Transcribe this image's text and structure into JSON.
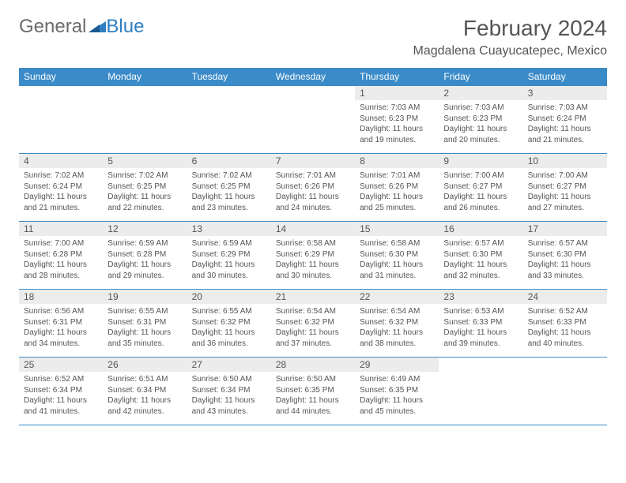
{
  "logo": {
    "part1": "General",
    "part2": "Blue"
  },
  "header": {
    "title": "February 2024",
    "location": "Magdalena Cuayucatepec, Mexico"
  },
  "colors": {
    "header_bg": "#3b8bc9",
    "header_text": "#ffffff",
    "daynum_bg": "#ececec",
    "text": "#555555",
    "border": "#3b8bc9",
    "logo_gray": "#6b6b6b",
    "logo_blue": "#2d7fc1"
  },
  "weekdays": [
    "Sunday",
    "Monday",
    "Tuesday",
    "Wednesday",
    "Thursday",
    "Friday",
    "Saturday"
  ],
  "weeks": [
    [
      null,
      null,
      null,
      null,
      {
        "day": "1",
        "sunrise": "Sunrise: 7:03 AM",
        "sunset": "Sunset: 6:23 PM",
        "daylight": "Daylight: 11 hours and 19 minutes."
      },
      {
        "day": "2",
        "sunrise": "Sunrise: 7:03 AM",
        "sunset": "Sunset: 6:23 PM",
        "daylight": "Daylight: 11 hours and 20 minutes."
      },
      {
        "day": "3",
        "sunrise": "Sunrise: 7:03 AM",
        "sunset": "Sunset: 6:24 PM",
        "daylight": "Daylight: 11 hours and 21 minutes."
      }
    ],
    [
      {
        "day": "4",
        "sunrise": "Sunrise: 7:02 AM",
        "sunset": "Sunset: 6:24 PM",
        "daylight": "Daylight: 11 hours and 21 minutes."
      },
      {
        "day": "5",
        "sunrise": "Sunrise: 7:02 AM",
        "sunset": "Sunset: 6:25 PM",
        "daylight": "Daylight: 11 hours and 22 minutes."
      },
      {
        "day": "6",
        "sunrise": "Sunrise: 7:02 AM",
        "sunset": "Sunset: 6:25 PM",
        "daylight": "Daylight: 11 hours and 23 minutes."
      },
      {
        "day": "7",
        "sunrise": "Sunrise: 7:01 AM",
        "sunset": "Sunset: 6:26 PM",
        "daylight": "Daylight: 11 hours and 24 minutes."
      },
      {
        "day": "8",
        "sunrise": "Sunrise: 7:01 AM",
        "sunset": "Sunset: 6:26 PM",
        "daylight": "Daylight: 11 hours and 25 minutes."
      },
      {
        "day": "9",
        "sunrise": "Sunrise: 7:00 AM",
        "sunset": "Sunset: 6:27 PM",
        "daylight": "Daylight: 11 hours and 26 minutes."
      },
      {
        "day": "10",
        "sunrise": "Sunrise: 7:00 AM",
        "sunset": "Sunset: 6:27 PM",
        "daylight": "Daylight: 11 hours and 27 minutes."
      }
    ],
    [
      {
        "day": "11",
        "sunrise": "Sunrise: 7:00 AM",
        "sunset": "Sunset: 6:28 PM",
        "daylight": "Daylight: 11 hours and 28 minutes."
      },
      {
        "day": "12",
        "sunrise": "Sunrise: 6:59 AM",
        "sunset": "Sunset: 6:28 PM",
        "daylight": "Daylight: 11 hours and 29 minutes."
      },
      {
        "day": "13",
        "sunrise": "Sunrise: 6:59 AM",
        "sunset": "Sunset: 6:29 PM",
        "daylight": "Daylight: 11 hours and 30 minutes."
      },
      {
        "day": "14",
        "sunrise": "Sunrise: 6:58 AM",
        "sunset": "Sunset: 6:29 PM",
        "daylight": "Daylight: 11 hours and 30 minutes."
      },
      {
        "day": "15",
        "sunrise": "Sunrise: 6:58 AM",
        "sunset": "Sunset: 6:30 PM",
        "daylight": "Daylight: 11 hours and 31 minutes."
      },
      {
        "day": "16",
        "sunrise": "Sunrise: 6:57 AM",
        "sunset": "Sunset: 6:30 PM",
        "daylight": "Daylight: 11 hours and 32 minutes."
      },
      {
        "day": "17",
        "sunrise": "Sunrise: 6:57 AM",
        "sunset": "Sunset: 6:30 PM",
        "daylight": "Daylight: 11 hours and 33 minutes."
      }
    ],
    [
      {
        "day": "18",
        "sunrise": "Sunrise: 6:56 AM",
        "sunset": "Sunset: 6:31 PM",
        "daylight": "Daylight: 11 hours and 34 minutes."
      },
      {
        "day": "19",
        "sunrise": "Sunrise: 6:55 AM",
        "sunset": "Sunset: 6:31 PM",
        "daylight": "Daylight: 11 hours and 35 minutes."
      },
      {
        "day": "20",
        "sunrise": "Sunrise: 6:55 AM",
        "sunset": "Sunset: 6:32 PM",
        "daylight": "Daylight: 11 hours and 36 minutes."
      },
      {
        "day": "21",
        "sunrise": "Sunrise: 6:54 AM",
        "sunset": "Sunset: 6:32 PM",
        "daylight": "Daylight: 11 hours and 37 minutes."
      },
      {
        "day": "22",
        "sunrise": "Sunrise: 6:54 AM",
        "sunset": "Sunset: 6:32 PM",
        "daylight": "Daylight: 11 hours and 38 minutes."
      },
      {
        "day": "23",
        "sunrise": "Sunrise: 6:53 AM",
        "sunset": "Sunset: 6:33 PM",
        "daylight": "Daylight: 11 hours and 39 minutes."
      },
      {
        "day": "24",
        "sunrise": "Sunrise: 6:52 AM",
        "sunset": "Sunset: 6:33 PM",
        "daylight": "Daylight: 11 hours and 40 minutes."
      }
    ],
    [
      {
        "day": "25",
        "sunrise": "Sunrise: 6:52 AM",
        "sunset": "Sunset: 6:34 PM",
        "daylight": "Daylight: 11 hours and 41 minutes."
      },
      {
        "day": "26",
        "sunrise": "Sunrise: 6:51 AM",
        "sunset": "Sunset: 6:34 PM",
        "daylight": "Daylight: 11 hours and 42 minutes."
      },
      {
        "day": "27",
        "sunrise": "Sunrise: 6:50 AM",
        "sunset": "Sunset: 6:34 PM",
        "daylight": "Daylight: 11 hours and 43 minutes."
      },
      {
        "day": "28",
        "sunrise": "Sunrise: 6:50 AM",
        "sunset": "Sunset: 6:35 PM",
        "daylight": "Daylight: 11 hours and 44 minutes."
      },
      {
        "day": "29",
        "sunrise": "Sunrise: 6:49 AM",
        "sunset": "Sunset: 6:35 PM",
        "daylight": "Daylight: 11 hours and 45 minutes."
      },
      null,
      null
    ]
  ]
}
